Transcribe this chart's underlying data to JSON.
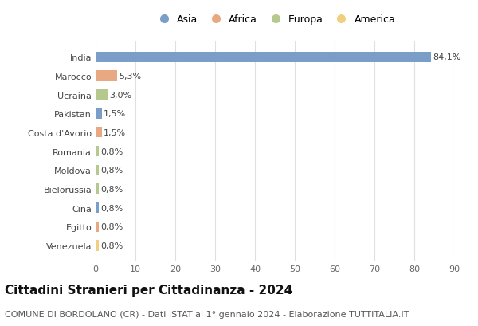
{
  "categories": [
    "India",
    "Marocco",
    "Ucraina",
    "Pakistan",
    "Costa d'Avorio",
    "Romania",
    "Moldova",
    "Bielorussia",
    "Cina",
    "Egitto",
    "Venezuela"
  ],
  "values": [
    84.1,
    5.3,
    3.0,
    1.5,
    1.5,
    0.8,
    0.8,
    0.8,
    0.8,
    0.8,
    0.8
  ],
  "labels": [
    "84,1%",
    "5,3%",
    "3,0%",
    "1,5%",
    "1,5%",
    "0,8%",
    "0,8%",
    "0,8%",
    "0,8%",
    "0,8%",
    "0,8%"
  ],
  "continents": [
    "Asia",
    "Africa",
    "Europa",
    "Asia",
    "Africa",
    "Europa",
    "Europa",
    "Europa",
    "Asia",
    "Africa",
    "America"
  ],
  "colors": {
    "Asia": "#7b9ec9",
    "Africa": "#e8a882",
    "Europa": "#b5c98e",
    "America": "#f0d080"
  },
  "bar_colors": [
    "#7b9ec9",
    "#e8a882",
    "#b5c98e",
    "#7b9ec9",
    "#e8a882",
    "#b5c98e",
    "#b5c98e",
    "#b5c98e",
    "#7b9ec9",
    "#e8a882",
    "#f0d080"
  ],
  "xlim": [
    0,
    90
  ],
  "xticks": [
    0,
    10,
    20,
    30,
    40,
    50,
    60,
    70,
    80,
    90
  ],
  "title": "Cittadini Stranieri per Cittadinanza - 2024",
  "subtitle": "COMUNE DI BORDOLANO (CR) - Dati ISTAT al 1° gennaio 2024 - Elaborazione TUTTITALIA.IT",
  "legend_order": [
    "Asia",
    "Africa",
    "Europa",
    "America"
  ],
  "bg_color": "#ffffff",
  "grid_color": "#e0e0e0",
  "bar_height": 0.55,
  "title_fontsize": 11,
  "subtitle_fontsize": 8,
  "label_fontsize": 8,
  "tick_fontsize": 8,
  "legend_fontsize": 9
}
